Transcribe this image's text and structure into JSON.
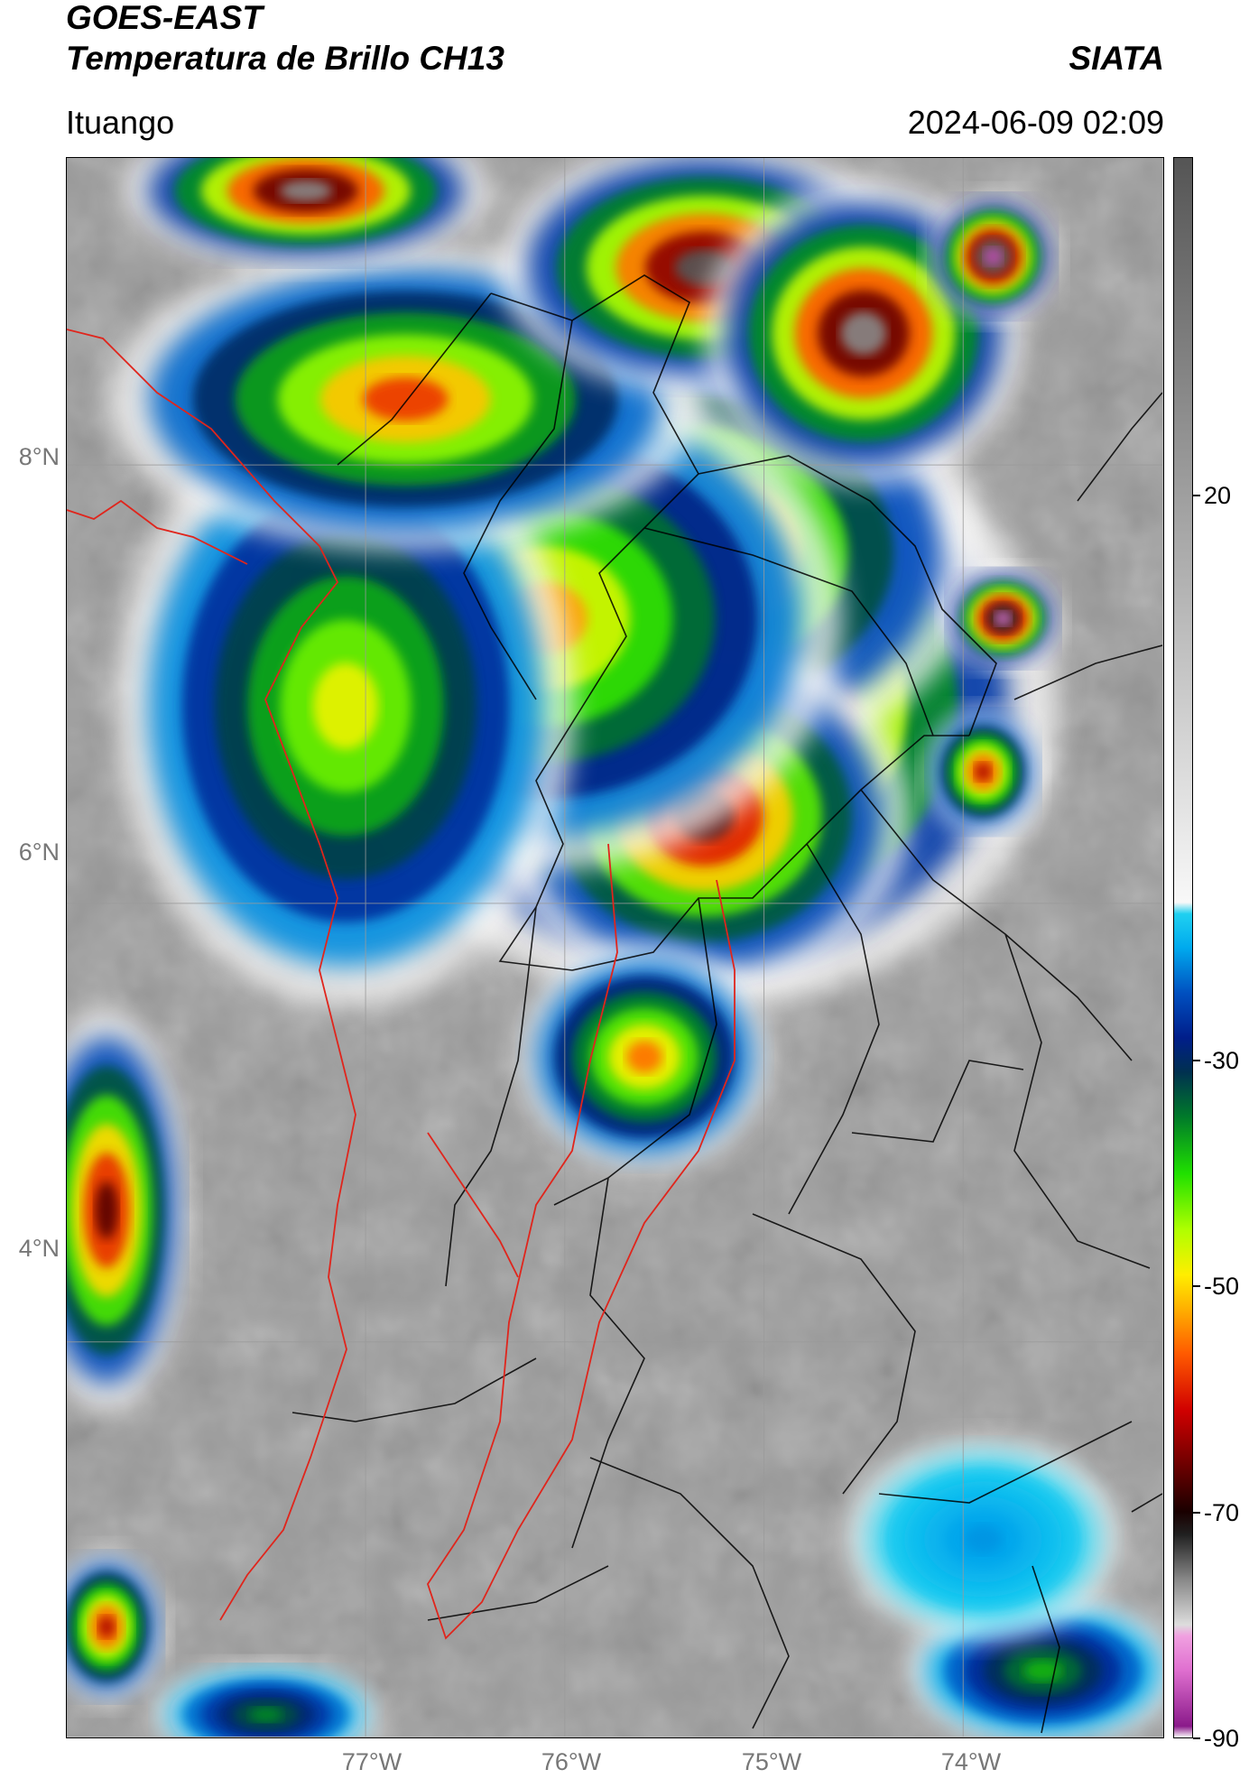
{
  "header": {
    "title_line1": "GOES-EAST",
    "title_line2": "Temperatura de Brillo CH13",
    "org": "SIATA",
    "location": "Ituango",
    "datetime": "2024-06-09 02:09"
  },
  "map": {
    "lat_range": [
      2.2,
      9.4
    ],
    "lon_range": [
      -78.5,
      -73.0
    ],
    "lat_ticks": [
      {
        "value": 8,
        "label": "8°N"
      },
      {
        "value": 6,
        "label": "6°N"
      },
      {
        "value": 4,
        "label": "4°N"
      }
    ],
    "lon_ticks": [
      {
        "value": -77,
        "label": "77°W"
      },
      {
        "value": -76,
        "label": "76°W"
      },
      {
        "value": -75,
        "label": "75°W"
      },
      {
        "value": -74,
        "label": "74°W"
      }
    ],
    "gridlines": true,
    "border_color": "#e0251c",
    "admin_line_color": "#000000"
  },
  "colorbar": {
    "range": [
      -90,
      50
    ],
    "ticks": [
      {
        "value": 20,
        "label": "20"
      },
      {
        "value": -30,
        "label": "-30"
      },
      {
        "value": -50,
        "label": "-50"
      },
      {
        "value": -70,
        "label": "-70"
      },
      {
        "value": -90,
        "label": "-90"
      }
    ],
    "stops": [
      {
        "value": -90,
        "color": "#ffffff"
      },
      {
        "value": -89,
        "color": "#8a1a8a"
      },
      {
        "value": -84,
        "color": "#e070d0"
      },
      {
        "value": -81,
        "color": "#f0a0e0"
      },
      {
        "value": -80,
        "color": "#dddddd"
      },
      {
        "value": -76,
        "color": "#888888"
      },
      {
        "value": -72,
        "color": "#202020"
      },
      {
        "value": -70,
        "color": "#1a0000"
      },
      {
        "value": -66,
        "color": "#6a0000"
      },
      {
        "value": -61,
        "color": "#d00000"
      },
      {
        "value": -56,
        "color": "#ff5a00"
      },
      {
        "value": -52,
        "color": "#ffb000"
      },
      {
        "value": -49,
        "color": "#ffee00"
      },
      {
        "value": -45,
        "color": "#b0ff00"
      },
      {
        "value": -40,
        "color": "#20e000"
      },
      {
        "value": -35,
        "color": "#007a2a"
      },
      {
        "value": -31,
        "color": "#003050"
      },
      {
        "value": -28,
        "color": "#001e8a"
      },
      {
        "value": -24,
        "color": "#0050c0"
      },
      {
        "value": -20,
        "color": "#00aaee"
      },
      {
        "value": -17,
        "color": "#20d0f0"
      },
      {
        "value": -16,
        "color": "#f8f8f8"
      },
      {
        "value": 50,
        "color": "#555555"
      }
    ]
  },
  "scene": {
    "cells": [
      {
        "lon": -75.3,
        "lat": 6.9,
        "rx": 1.55,
        "ry": 1.2,
        "bt": -75
      },
      {
        "lon": -75.5,
        "lat": 7.6,
        "rx": 1.4,
        "ry": 0.9,
        "bt": -66
      },
      {
        "lon": -75.3,
        "lat": 6.4,
        "rx": 0.9,
        "ry": 0.7,
        "bt": -68
      },
      {
        "lon": -75.6,
        "lat": 5.3,
        "rx": 0.55,
        "ry": 0.45,
        "bt": -55
      },
      {
        "lon": -76.1,
        "lat": 7.3,
        "rx": 1.3,
        "ry": 1.0,
        "bt": -53
      },
      {
        "lon": -77.1,
        "lat": 6.9,
        "rx": 1.0,
        "ry": 1.2,
        "bt": -48
      },
      {
        "lon": -76.8,
        "lat": 8.3,
        "rx": 1.3,
        "ry": 0.6,
        "bt": -58
      },
      {
        "lon": -75.3,
        "lat": 8.9,
        "rx": 0.9,
        "ry": 0.5,
        "bt": -74
      },
      {
        "lon": -74.5,
        "lat": 8.6,
        "rx": 0.7,
        "ry": 0.6,
        "bt": -76
      },
      {
        "lon": -77.3,
        "lat": 9.25,
        "rx": 0.8,
        "ry": 0.3,
        "bt": -76
      },
      {
        "lon": -73.85,
        "lat": 8.95,
        "rx": 0.28,
        "ry": 0.25,
        "bt": -86
      },
      {
        "lon": -73.8,
        "lat": 7.3,
        "rx": 0.25,
        "ry": 0.2,
        "bt": -84
      },
      {
        "lon": -73.9,
        "lat": 6.6,
        "rx": 0.25,
        "ry": 0.25,
        "bt": -63
      },
      {
        "lon": -78.3,
        "lat": 4.6,
        "rx": 0.35,
        "ry": 0.8,
        "bt": -67
      },
      {
        "lon": -78.3,
        "lat": 2.7,
        "rx": 0.25,
        "ry": 0.3,
        "bt": -63
      },
      {
        "lon": -73.6,
        "lat": 2.5,
        "rx": 0.6,
        "ry": 0.3,
        "bt": -38
      },
      {
        "lon": -73.9,
        "lat": 3.1,
        "rx": 0.6,
        "ry": 0.4,
        "bt": -21
      },
      {
        "lon": -77.5,
        "lat": 2.3,
        "rx": 0.5,
        "ry": 0.2,
        "bt": -36
      }
    ],
    "background_bt": 22
  }
}
